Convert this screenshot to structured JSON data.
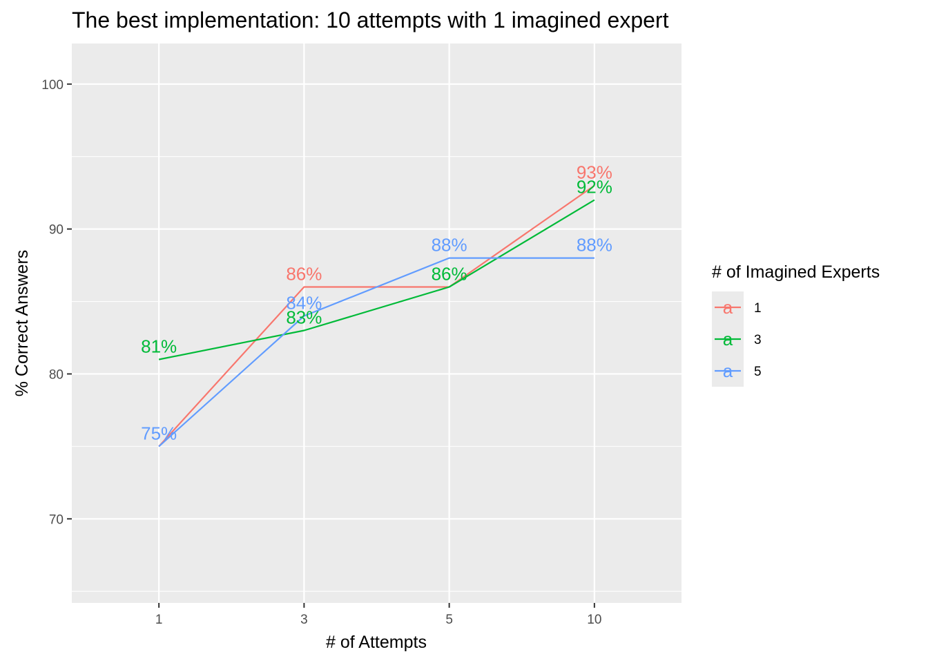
{
  "chart_data": {
    "type": "line",
    "title": "The best implementation: 10 attempts with 1 imagined expert",
    "xlabel": "# of Attempts",
    "ylabel": "% Correct Answers",
    "x_scale": "discrete",
    "categories": [
      "1",
      "3",
      "5",
      "10"
    ],
    "yticks": [
      70,
      80,
      90,
      100
    ],
    "ylim": [
      64.2,
      102.8
    ],
    "grid": true,
    "legend": {
      "title": "# of Imagined Experts",
      "position": "right",
      "key_glyph": "a"
    },
    "series": [
      {
        "name": "1",
        "color": "#F8766D",
        "values": [
          75,
          86,
          86,
          93
        ],
        "labels": [
          null,
          "86%",
          null,
          "93%"
        ]
      },
      {
        "name": "3",
        "color": "#00BA38",
        "values": [
          81,
          83,
          86,
          92
        ],
        "labels": [
          "81%",
          "83%",
          "86%",
          "92%"
        ]
      },
      {
        "name": "5",
        "color": "#619CFF",
        "values": [
          75,
          84,
          88,
          88
        ],
        "labels": [
          "75%",
          "84%",
          "88%",
          "88%"
        ]
      }
    ],
    "colors": {
      "panel_background": "#EBEBEB",
      "grid": "#FFFFFF",
      "legend_key_background": "#EBEBEB"
    }
  }
}
